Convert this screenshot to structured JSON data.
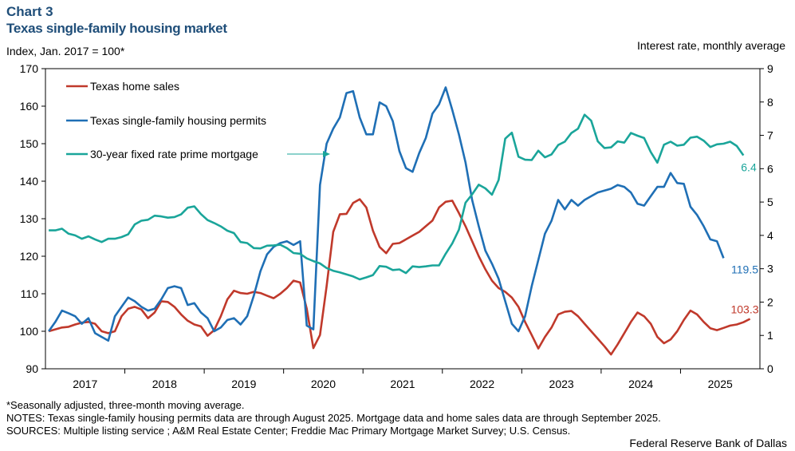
{
  "header": {
    "chart_number": "Chart 3",
    "title": "Texas single-family housing market",
    "left_axis_label": "Index, Jan. 2017 = 100*",
    "right_axis_label": "Interest rate, monthly average"
  },
  "footer": {
    "note1": "*Seasonally adjusted, three-month moving average.",
    "note2": "NOTES: Texas single-family housing permits data are through August 2025. Mortgage data and home sales data are through September 2025.",
    "note3": "SOURCES: Multiple listing service ; A&M Real Estate Center; Freddie Mac Primary Mortgage Market Survey; U.S. Census.",
    "credit": "Federal Reserve Bank of Dallas"
  },
  "colors": {
    "sales": "#c0392b",
    "permits": "#1f6fb5",
    "mortgage": "#1aa59a",
    "title": "#1f4e79"
  },
  "chart_data": {
    "type": "line",
    "title": "Texas single-family housing market",
    "x_categories": [
      "2017",
      "2018",
      "2019",
      "2020",
      "2021",
      "2022",
      "2023",
      "2024",
      "2025"
    ],
    "x_range_months": [
      "2017-01",
      "2025-12"
    ],
    "left_axis": {
      "label": "Index, Jan. 2017 = 100*",
      "min": 90,
      "max": 170,
      "ticks": [
        90,
        100,
        110,
        120,
        130,
        140,
        150,
        160,
        170
      ]
    },
    "right_axis": {
      "label": "Interest rate, monthly average",
      "min": 0,
      "max": 9,
      "ticks": [
        0,
        1,
        2,
        3,
        4,
        5,
        6,
        7,
        8,
        9
      ]
    },
    "legend": [
      {
        "name": "Texas home sales",
        "color": "#c0392b"
      },
      {
        "name": "Texas single-family housing permits",
        "color": "#1f6fb5"
      },
      {
        "name": "30-year fixed rate prime mortgage",
        "color": "#1aa59a"
      }
    ],
    "series": [
      {
        "name": "Texas home sales",
        "axis": "left",
        "start": "2017-01",
        "end_label": "103.3",
        "values": [
          100,
          100.5,
          101,
          101.2,
          101.8,
          102.3,
          102.5,
          102,
          100,
          99.5,
          100,
          104,
          106,
          106.5,
          105.8,
          103.5,
          105,
          108,
          107.8,
          106.5,
          104.5,
          102.8,
          101.8,
          101.3,
          98.8,
          100.3,
          104,
          108.5,
          110.8,
          110.2,
          110,
          110.5,
          110.2,
          109.5,
          108.8,
          110,
          111.5,
          113.5,
          113,
          106,
          95.5,
          99,
          112,
          126.5,
          131.2,
          131.3,
          134.2,
          135.2,
          133,
          126.8,
          122.5,
          120.8,
          123.3,
          123.5,
          124.5,
          125.5,
          126.5,
          128,
          129.5,
          133,
          134.5,
          134.8,
          131.5,
          128,
          124,
          120,
          116.5,
          113.5,
          111.5,
          110.5,
          109,
          106.5,
          102.5,
          99,
          95.4,
          98.5,
          101,
          104.5,
          105.2,
          105.4,
          104,
          102,
          100,
          98,
          96,
          93.8,
          96.5,
          99.5,
          102.5,
          105,
          104,
          102,
          98.5,
          96.8,
          97.8,
          100,
          103,
          105.5,
          104.5,
          102.5,
          100.8,
          100.3,
          100.9,
          101.5,
          101.8,
          102.4,
          103.3
        ]
      },
      {
        "name": "Texas single-family housing permits",
        "axis": "left",
        "start": "2017-01",
        "end_label": "119.5",
        "values": [
          100,
          102.5,
          105.5,
          104.8,
          104,
          102,
          103.5,
          99.5,
          98.5,
          97.5,
          104,
          106.5,
          109,
          108,
          106.5,
          105.5,
          106,
          108.5,
          111.5,
          112,
          111.5,
          107,
          107.5,
          105,
          103.5,
          100,
          101,
          103,
          103.5,
          101.8,
          104,
          109.5,
          116,
          120.5,
          122.5,
          123.5,
          124,
          123,
          124,
          101.5,
          100.5,
          139,
          150,
          154,
          157,
          163.5,
          164,
          157,
          152.5,
          152.5,
          161,
          160,
          156,
          148,
          143.5,
          142.5,
          147.5,
          151.5,
          158,
          160.5,
          165,
          159,
          152.5,
          145,
          135,
          128,
          121.5,
          118,
          114,
          108,
          102,
          100,
          104,
          112,
          119,
          126,
          129.5,
          135,
          132.5,
          135,
          133.5,
          135,
          136,
          137,
          137.5,
          138,
          139,
          138.5,
          137,
          134,
          133.5,
          136,
          138.5,
          138.5,
          142.2,
          139.5,
          139.3,
          133.2,
          131,
          128,
          124.5,
          124,
          119.5
        ]
      },
      {
        "name": "30-year fixed rate prime mortgage",
        "axis": "right",
        "start": "2017-01",
        "end_label": "6.4",
        "values": [
          4.15,
          4.15,
          4.2,
          4.05,
          4.0,
          3.9,
          3.97,
          3.88,
          3.8,
          3.9,
          3.9,
          3.95,
          4.03,
          4.33,
          4.44,
          4.47,
          4.59,
          4.57,
          4.53,
          4.55,
          4.63,
          4.83,
          4.87,
          4.64,
          4.46,
          4.37,
          4.27,
          4.14,
          4.07,
          3.8,
          3.77,
          3.62,
          3.61,
          3.69,
          3.7,
          3.72,
          3.62,
          3.47,
          3.45,
          3.31,
          3.23,
          3.16,
          3.02,
          2.94,
          2.89,
          2.83,
          2.77,
          2.68,
          2.74,
          2.81,
          3.08,
          3.06,
          2.96,
          2.98,
          2.87,
          3.07,
          3.05,
          3.07,
          3.1,
          3.1,
          3.45,
          3.76,
          4.17,
          4.98,
          5.23,
          5.52,
          5.41,
          5.22,
          5.66,
          6.9,
          7.08,
          6.36,
          6.27,
          6.26,
          6.54,
          6.34,
          6.43,
          6.71,
          6.81,
          7.07,
          7.2,
          7.62,
          7.44,
          6.82,
          6.62,
          6.64,
          6.82,
          6.78,
          7.07,
          6.99,
          6.92,
          6.5,
          6.18,
          6.72,
          6.81,
          6.69,
          6.72,
          6.93,
          6.96,
          6.84,
          6.65,
          6.73,
          6.75,
          6.81,
          6.68,
          6.4
        ]
      }
    ]
  }
}
